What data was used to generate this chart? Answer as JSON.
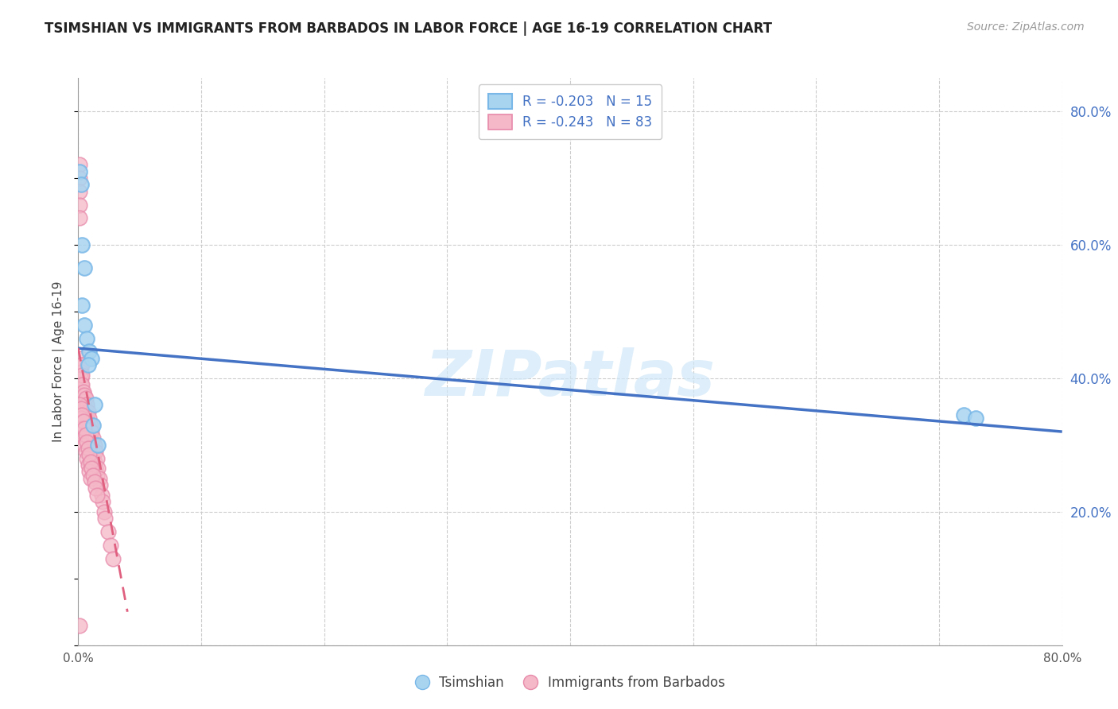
{
  "title": "TSIMSHIAN VS IMMIGRANTS FROM BARBADOS IN LABOR FORCE | AGE 16-19 CORRELATION CHART",
  "source": "Source: ZipAtlas.com",
  "ylabel": "In Labor Force | Age 16-19",
  "xlim": [
    0.0,
    0.8
  ],
  "ylim": [
    0.0,
    0.85
  ],
  "xticks": [
    0.0,
    0.1,
    0.2,
    0.3,
    0.4,
    0.5,
    0.6,
    0.7,
    0.8
  ],
  "ytick_positions": [
    0.0,
    0.2,
    0.4,
    0.6,
    0.8
  ],
  "ytick_labels_right": [
    "",
    "20.0%",
    "40.0%",
    "60.0%",
    "80.0%"
  ],
  "tsimshian_color": "#a8d4f0",
  "barbados_color": "#f4b8c8",
  "tsimshian_edge": "#7ab8e8",
  "barbados_edge": "#e88aaa",
  "trend_blue": "#4472C4",
  "trend_pink": "#e06080",
  "watermark_color": "#d0e8f8",
  "background_color": "#ffffff",
  "grid_color": "#cccccc",
  "tsimshian_x": [
    0.001,
    0.002,
    0.003,
    0.005,
    0.007,
    0.009,
    0.011,
    0.013,
    0.016,
    0.72,
    0.73,
    0.003,
    0.005,
    0.008,
    0.012
  ],
  "tsimshian_y": [
    0.71,
    0.69,
    0.51,
    0.48,
    0.46,
    0.44,
    0.43,
    0.36,
    0.3,
    0.345,
    0.34,
    0.6,
    0.565,
    0.42,
    0.33
  ],
  "barbados_x": [
    0.001,
    0.001,
    0.001,
    0.001,
    0.001,
    0.002,
    0.002,
    0.002,
    0.002,
    0.002,
    0.003,
    0.003,
    0.003,
    0.003,
    0.004,
    0.004,
    0.004,
    0.005,
    0.005,
    0.005,
    0.006,
    0.006,
    0.006,
    0.007,
    0.007,
    0.007,
    0.008,
    0.008,
    0.008,
    0.009,
    0.009,
    0.01,
    0.01,
    0.01,
    0.011,
    0.011,
    0.012,
    0.012,
    0.013,
    0.013,
    0.014,
    0.014,
    0.015,
    0.015,
    0.016,
    0.017,
    0.018,
    0.019,
    0.02,
    0.021,
    0.022,
    0.024,
    0.026,
    0.028,
    0.001,
    0.001,
    0.001,
    0.001,
    0.002,
    0.002,
    0.002,
    0.003,
    0.003,
    0.004,
    0.004,
    0.005,
    0.005,
    0.006,
    0.006,
    0.007,
    0.007,
    0.008,
    0.008,
    0.009,
    0.009,
    0.01,
    0.01,
    0.011,
    0.012,
    0.013,
    0.014,
    0.015,
    0.001
  ],
  "barbados_y": [
    0.72,
    0.7,
    0.68,
    0.66,
    0.64,
    0.43,
    0.42,
    0.41,
    0.4,
    0.39,
    0.42,
    0.405,
    0.39,
    0.375,
    0.38,
    0.365,
    0.35,
    0.375,
    0.355,
    0.335,
    0.37,
    0.35,
    0.33,
    0.36,
    0.34,
    0.32,
    0.35,
    0.33,
    0.31,
    0.34,
    0.315,
    0.33,
    0.31,
    0.29,
    0.32,
    0.295,
    0.31,
    0.285,
    0.3,
    0.275,
    0.29,
    0.265,
    0.28,
    0.255,
    0.265,
    0.25,
    0.24,
    0.225,
    0.215,
    0.2,
    0.19,
    0.17,
    0.15,
    0.13,
    0.36,
    0.345,
    0.33,
    0.315,
    0.355,
    0.34,
    0.32,
    0.345,
    0.325,
    0.335,
    0.31,
    0.325,
    0.3,
    0.315,
    0.29,
    0.305,
    0.28,
    0.295,
    0.27,
    0.285,
    0.26,
    0.275,
    0.25,
    0.265,
    0.255,
    0.245,
    0.235,
    0.225,
    0.03
  ],
  "blue_trend_x": [
    0.0,
    0.8
  ],
  "blue_trend_y": [
    0.445,
    0.32
  ],
  "pink_trend_x": [
    0.0,
    0.04
  ],
  "pink_trend_y": [
    0.445,
    0.05
  ],
  "watermark": "ZIPatlas"
}
